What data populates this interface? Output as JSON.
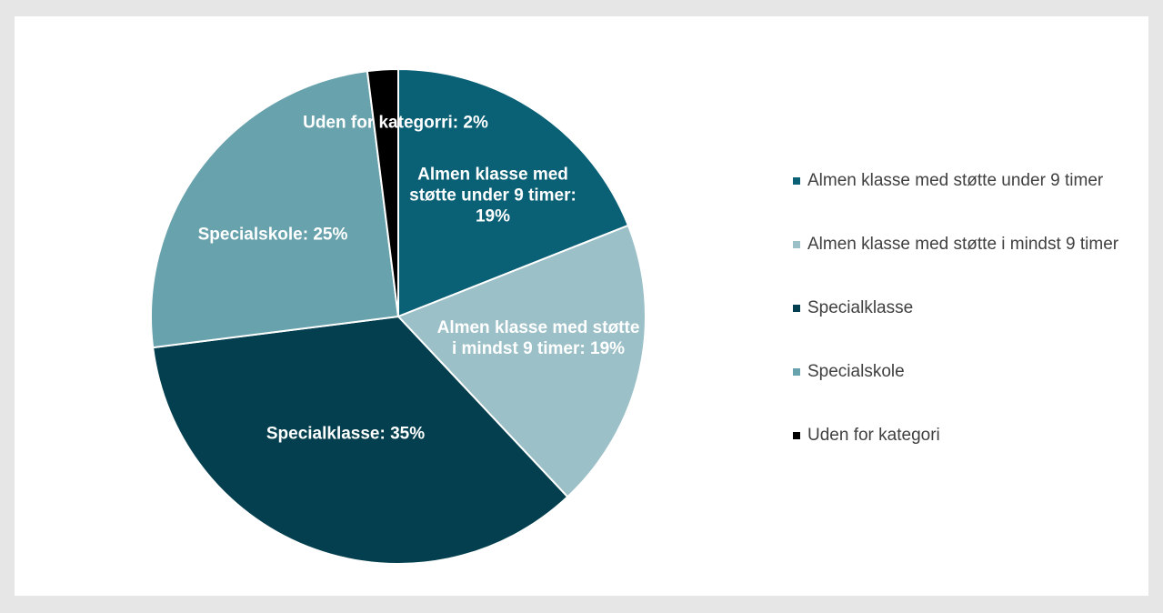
{
  "chart_data": {
    "type": "pie",
    "categories": [
      "Almen klasse med støtte under 9 timer",
      "Almen klasse med støtte i mindst 9 timer",
      "Specialklasse",
      "Specialskole",
      "Uden for kategori"
    ],
    "values": [
      19,
      19,
      35,
      25,
      2
    ],
    "value_labels": [
      "Almen klasse med støtte under 9 timer: 19%",
      "Almen klasse med støtte i mindst 9 timer: 19%",
      "Specialklasse: 35%",
      "Specialskole: 25%",
      "Uden for kategorri: 2%"
    ],
    "colors": [
      "#0a6075",
      "#9cc0c7",
      "#033f4e",
      "#68a2ac",
      "#000000"
    ],
    "legend": "right"
  }
}
